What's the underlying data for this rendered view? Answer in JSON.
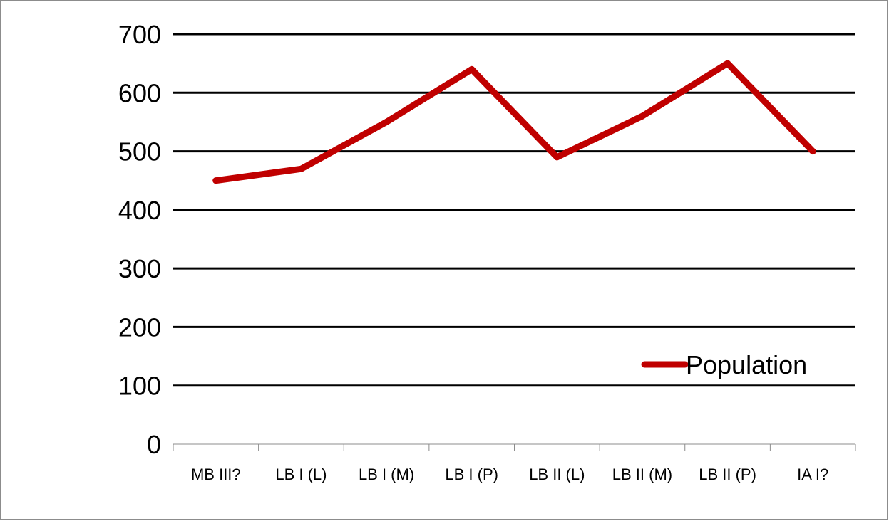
{
  "chart_data": {
    "type": "line",
    "title": "",
    "xlabel": "",
    "ylabel": "",
    "categories": [
      "MB III?",
      "LB I (L)",
      "LB I (M)",
      "LB I (P)",
      "LB II (L)",
      "LB II (M)",
      "LB II (P)",
      "IA I?"
    ],
    "series": [
      {
        "name": "Population",
        "values": [
          450,
          470,
          550,
          640,
          490,
          560,
          650,
          500
        ],
        "color": "#c00000"
      }
    ],
    "ylim": [
      0,
      700
    ],
    "yticks": [
      "0",
      "100",
      "200",
      "300",
      "400",
      "500",
      "600",
      "700"
    ],
    "grid": true,
    "legend_position": "bottom-right"
  }
}
